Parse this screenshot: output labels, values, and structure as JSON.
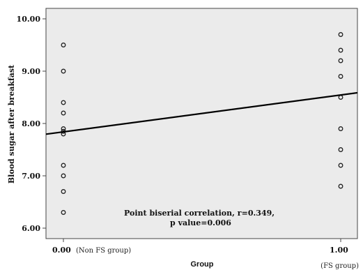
{
  "chart_data": {
    "type": "scatter",
    "xlabel": "Group",
    "ylabel": "Blood sugar after breakfast",
    "xlim": [
      0,
      1.05
    ],
    "ylim": [
      5.8,
      10.2
    ],
    "x_ticks": [
      {
        "value": 0,
        "label": "0.00",
        "group_label": "(Non FS group)"
      },
      {
        "value": 1,
        "label": "1.00",
        "group_label": "(FS group)"
      }
    ],
    "y_ticks": [
      6.0,
      7.0,
      8.0,
      9.0,
      10.0
    ],
    "y_tick_labels": [
      "6.00",
      "7.00",
      "8.00",
      "9.00",
      "10.00"
    ],
    "points": [
      {
        "x": 0,
        "y": 9.5
      },
      {
        "x": 0,
        "y": 9.0
      },
      {
        "x": 0,
        "y": 8.4
      },
      {
        "x": 0,
        "y": 8.2
      },
      {
        "x": 0,
        "y": 7.9
      },
      {
        "x": 0,
        "y": 7.85
      },
      {
        "x": 0,
        "y": 7.8
      },
      {
        "x": 0,
        "y": 7.2
      },
      {
        "x": 0,
        "y": 7.0
      },
      {
        "x": 0,
        "y": 6.7
      },
      {
        "x": 0,
        "y": 6.3
      },
      {
        "x": 1,
        "y": 9.7
      },
      {
        "x": 1,
        "y": 9.4
      },
      {
        "x": 1,
        "y": 9.2
      },
      {
        "x": 1,
        "y": 8.9
      },
      {
        "x": 1,
        "y": 8.5
      },
      {
        "x": 1,
        "y": 7.9
      },
      {
        "x": 1,
        "y": 7.5
      },
      {
        "x": 1,
        "y": 7.2
      },
      {
        "x": 1,
        "y": 6.8
      }
    ],
    "fit_line": {
      "x": [
        0,
        1.05
      ],
      "y": [
        7.84,
        8.58
      ]
    },
    "annotation": [
      "Point biserial correlation, r=0.349,",
      "p value=0.006"
    ],
    "colors": {
      "background": "#ebebeb",
      "points": "#222222",
      "line": "#000000"
    }
  }
}
